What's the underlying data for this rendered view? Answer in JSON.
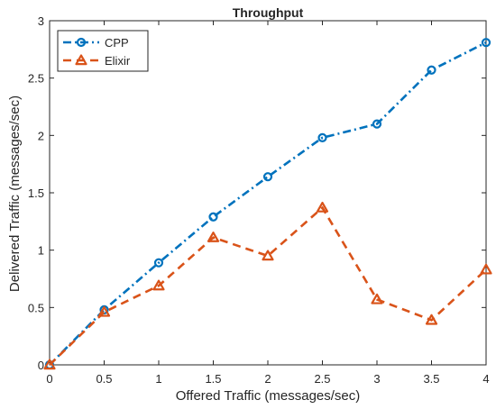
{
  "chart_data": {
    "type": "line",
    "title": "Throughput",
    "xlabel": "Offered Traffic (messages/sec)",
    "ylabel": "Delivered Traffic (messages/sec)",
    "xlim": [
      0,
      4
    ],
    "ylim": [
      0,
      3
    ],
    "xticks": [
      "0",
      "0.5",
      "1",
      "1.5",
      "2",
      "2.5",
      "3",
      "3.5",
      "4"
    ],
    "yticks": [
      "0",
      "0.5",
      "1",
      "1.5",
      "2",
      "2.5",
      "3"
    ],
    "x": [
      0,
      0.5,
      1,
      1.5,
      2,
      2.5,
      3,
      3.5,
      4
    ],
    "grid": false,
    "legend_position": "top-left",
    "series": [
      {
        "name": "CPP",
        "values": [
          0,
          0.48,
          0.89,
          1.29,
          1.64,
          1.98,
          2.1,
          2.57,
          2.81
        ],
        "color": "#0072BD",
        "line_style": "dash-dot",
        "marker": "circle"
      },
      {
        "name": "Elixir",
        "values": [
          0,
          0.46,
          0.69,
          1.11,
          0.95,
          1.37,
          0.57,
          0.39,
          0.83
        ],
        "color": "#D95319",
        "line_style": "dashed",
        "marker": "triangle"
      }
    ]
  }
}
